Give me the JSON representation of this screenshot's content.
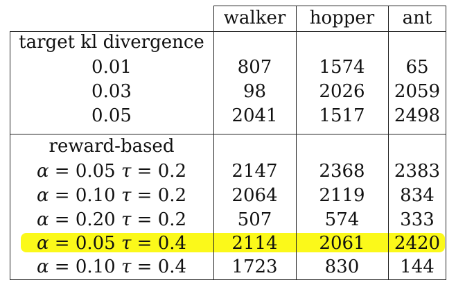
{
  "columns": [
    "walker",
    "hopper",
    "ant"
  ],
  "sections": [
    {
      "title": "target kl divergence",
      "rows": [
        {
          "label": "0.01",
          "values": [
            "807",
            "1574",
            "65"
          ]
        },
        {
          "label": "0.03",
          "values": [
            "98",
            "2026",
            "2059"
          ]
        },
        {
          "label": "0.05",
          "values": [
            "2041",
            "1517",
            "2498"
          ]
        }
      ]
    },
    {
      "title": "reward-based",
      "rows": [
        {
          "alpha": "0.05",
          "tau": "0.2",
          "values": [
            "2147",
            "2368",
            "2383"
          ]
        },
        {
          "alpha": "0.10",
          "tau": "0.2",
          "values": [
            "2064",
            "2119",
            "834"
          ]
        },
        {
          "alpha": "0.20",
          "tau": "0.2",
          "values": [
            "507",
            "574",
            "333"
          ]
        },
        {
          "alpha": "0.05",
          "tau": "0.4",
          "values": [
            "2114",
            "2061",
            "2420"
          ],
          "highlighted": true
        },
        {
          "alpha": "0.10",
          "tau": "0.4",
          "values": [
            "1723",
            "830",
            "144"
          ]
        }
      ]
    }
  ],
  "symbols": {
    "alpha": "α",
    "tau": "τ",
    "eq": "="
  },
  "highlight_color": "#fbf91a"
}
